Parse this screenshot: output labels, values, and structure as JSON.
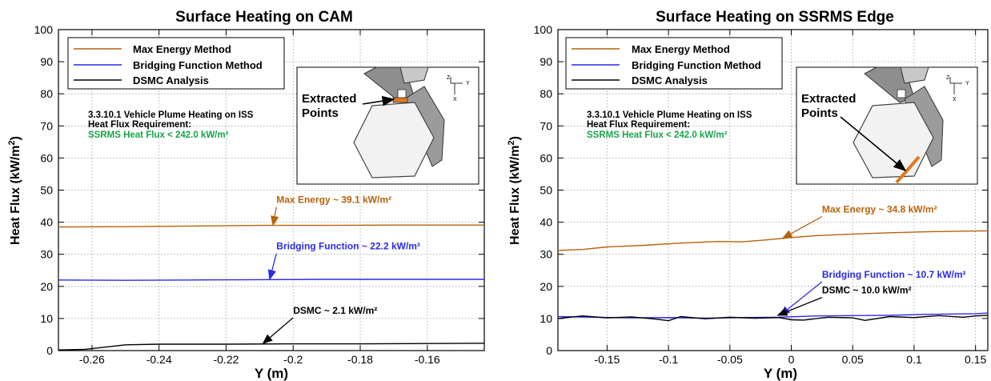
{
  "colors": {
    "max_energy": "#b8620a",
    "bridging": "#2a2ae8",
    "dsmc": "#000000",
    "requirement": "#1aa34a",
    "grid": "#9a9a9a"
  },
  "chart_data": [
    {
      "type": "line",
      "title": "Surface Heating on CAM",
      "xlabel": "Y (m)",
      "ylabel": "Heat Flux (kW/m²)",
      "xlim": [
        -0.27,
        -0.143
      ],
      "ylim": [
        0,
        100
      ],
      "xticks": [
        -0.26,
        -0.24,
        -0.22,
        -0.2,
        -0.18,
        -0.16
      ],
      "xtick_labels": [
        "-0.26",
        "-0.24",
        "-0.22",
        "-0.2",
        "-0.18",
        "-0.16"
      ],
      "yticks": [
        0,
        10,
        20,
        30,
        40,
        50,
        60,
        70,
        80,
        90,
        100
      ],
      "grid": true,
      "legend": {
        "position": "top-left",
        "entries": [
          "Max Energy Method",
          "Bridging Function Method",
          "DSMC Analysis"
        ]
      },
      "requirement_text": {
        "line1": "3.3.10.1 Vehicle Plume Heating on ISS",
        "line2": "Heat Flux Requirement:",
        "line3": "SSRMS Heat Flux < 242.0 kW/m²"
      },
      "inset": {
        "label_line1": "Extracted",
        "label_line2": "Points",
        "axis_z": "Z",
        "axis_y": "Y",
        "axis_x": "X"
      },
      "series": [
        {
          "name": "Max Energy Method",
          "x": [
            -0.27,
            -0.25,
            -0.23,
            -0.21,
            -0.19,
            -0.17,
            -0.143
          ],
          "y": [
            38.5,
            38.6,
            38.8,
            39.0,
            39.0,
            39.1,
            39.1
          ]
        },
        {
          "name": "Bridging Function Method",
          "x": [
            -0.27,
            -0.25,
            -0.23,
            -0.21,
            -0.19,
            -0.17,
            -0.143
          ],
          "y": [
            22.0,
            21.9,
            22.0,
            22.1,
            22.2,
            22.2,
            22.2
          ]
        },
        {
          "name": "DSMC Analysis",
          "x": [
            -0.27,
            -0.262,
            -0.255,
            -0.25,
            -0.24,
            -0.22,
            -0.2,
            -0.18,
            -0.16,
            -0.143
          ],
          "y": [
            0.2,
            0.4,
            1.2,
            1.8,
            2.0,
            2.0,
            2.1,
            2.1,
            2.2,
            2.3
          ]
        }
      ],
      "annotations": [
        {
          "text": "Max Energy ~ 39.1 kW/m²",
          "series": "Max Energy Method",
          "at_x": -0.206,
          "at_y": 39.0,
          "label_x": -0.205,
          "label_y": 45.5
        },
        {
          "text": "Bridging Function ~ 22.2 kW/m²",
          "series": "Bridging Function Method",
          "at_x": -0.207,
          "at_y": 22.2,
          "label_x": -0.205,
          "label_y": 31.0
        },
        {
          "text": "DSMC ~ 2.1 kW/m²",
          "series": "DSMC Analysis",
          "at_x": -0.209,
          "at_y": 2.2,
          "label_x": -0.2,
          "label_y": 11.0
        }
      ]
    },
    {
      "type": "line",
      "title": "Surface Heating on SSRMS Edge",
      "xlabel": "Y (m)",
      "ylabel": "Heat Flux (kW/m²)",
      "xlim": [
        -0.19,
        0.16
      ],
      "ylim": [
        0,
        100
      ],
      "xticks": [
        -0.15,
        -0.1,
        -0.05,
        0,
        0.05,
        0.1,
        0.15
      ],
      "xtick_labels": [
        "-0.15",
        "-0.1",
        "-0.05",
        "0",
        "0.05",
        "0.1",
        "0.15"
      ],
      "yticks": [
        0,
        10,
        20,
        30,
        40,
        50,
        60,
        70,
        80,
        90,
        100
      ],
      "grid": true,
      "legend": {
        "position": "top-left",
        "entries": [
          "Max Energy Method",
          "Bridging Function Method",
          "DSMC Analysis"
        ]
      },
      "requirement_text": {
        "line1": "3.3.10.1 Vehicle Plume Heating on ISS",
        "line2": "Heat Flux Requirement:",
        "line3": "SSRMS Heat Flux < 242.0 kW/m²"
      },
      "inset": {
        "label_line1": "Extracted",
        "label_line2": "Points",
        "axis_z": "Z",
        "axis_y": "Y",
        "axis_x": "X"
      },
      "series": [
        {
          "name": "Max Energy Method",
          "x": [
            -0.19,
            -0.17,
            -0.15,
            -0.12,
            -0.09,
            -0.06,
            -0.04,
            -0.02,
            0.0,
            0.02,
            0.05,
            0.08,
            0.11,
            0.14,
            0.16
          ],
          "y": [
            31.2,
            31.5,
            32.3,
            32.8,
            33.5,
            34.0,
            33.9,
            34.5,
            35.2,
            35.8,
            36.3,
            36.7,
            37.0,
            37.2,
            37.3
          ]
        },
        {
          "name": "Bridging Function Method",
          "x": [
            -0.19,
            -0.16,
            -0.13,
            -0.1,
            -0.07,
            -0.04,
            -0.01,
            0.02,
            0.05,
            0.08,
            0.11,
            0.13,
            0.15,
            0.16
          ],
          "y": [
            10.6,
            10.4,
            10.2,
            10.3,
            10.1,
            10.3,
            10.4,
            10.8,
            10.9,
            11.0,
            11.3,
            11.4,
            11.5,
            11.7
          ]
        },
        {
          "name": "DSMC Analysis",
          "x": [
            -0.19,
            -0.17,
            -0.15,
            -0.13,
            -0.11,
            -0.1,
            -0.09,
            -0.07,
            -0.05,
            -0.03,
            -0.01,
            0.0,
            0.01,
            0.03,
            0.05,
            0.06,
            0.08,
            0.1,
            0.12,
            0.14,
            0.15,
            0.16
          ],
          "y": [
            10.0,
            10.8,
            10.2,
            10.5,
            9.8,
            9.3,
            10.6,
            9.9,
            10.4,
            10.1,
            10.3,
            9.6,
            9.5,
            10.4,
            10.2,
            9.4,
            10.6,
            10.3,
            10.9,
            10.4,
            10.8,
            11.0
          ]
        }
      ],
      "annotations": [
        {
          "text": "Max Energy ~ 34.8 kW/m²",
          "series": "Max Energy Method",
          "at_x": -0.007,
          "at_y": 35.0,
          "label_x": 0.025,
          "label_y": 42.5
        },
        {
          "text": "Bridging Function ~ 10.7 kW/m²",
          "series": "Bridging Function Method",
          "at_x": -0.009,
          "at_y": 11.0,
          "label_x": 0.025,
          "label_y": 22.2
        },
        {
          "text": "DSMC ~ 10.0 kW/m²",
          "series": "DSMC Analysis",
          "at_x": -0.011,
          "at_y": 11.0,
          "label_x": 0.025,
          "label_y": 17.3
        }
      ]
    }
  ]
}
